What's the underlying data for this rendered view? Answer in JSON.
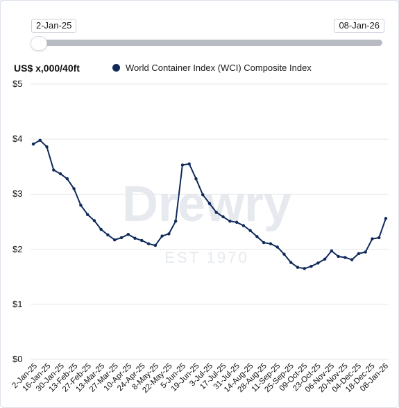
{
  "range_selector": {
    "start_label": "2-Jan-25",
    "end_label": "08-Jan-26"
  },
  "unit_label": "US$ x,000/40ft",
  "legend_label": "World Container Index (WCI) Composite Index",
  "watermark": {
    "brand": "Drewry",
    "tagline": "EST 1970"
  },
  "colors": {
    "line": "#0f2a5a",
    "grid": "#e3e6ea",
    "watermark": "#e6e9ee"
  },
  "chart_data": {
    "type": "line",
    "title": "",
    "ylabel": "US$ x,000/40ft",
    "ylim": [
      0,
      5
    ],
    "y_ticks": [
      {
        "value": 0,
        "label": "$0"
      },
      {
        "value": 1,
        "label": "$1"
      },
      {
        "value": 2,
        "label": "$2"
      },
      {
        "value": 3,
        "label": "$3"
      },
      {
        "value": 4,
        "label": "$4"
      },
      {
        "value": 5,
        "label": "$5"
      }
    ],
    "x_tick_labels": [
      "2-Jan-25",
      "16-Jan-25",
      "30-Jan-25",
      "13-Feb-25",
      "27-Feb-25",
      "13-Mar-25",
      "27-Mar-25",
      "10-Apr-25",
      "24-Apr-25",
      "8-May-25",
      "22-May-25",
      "5-Jun-25",
      "19-Jun-25",
      "3-Jul-25",
      "17-Jul-25",
      "31-Jul-25",
      "14-Aug-25",
      "28-Aug-25",
      "11-Sep-25",
      "25-Sep-25",
      "09-Oct-25",
      "23-Oct-25",
      "06-Nov-25",
      "20-Nov-25",
      "04-Dec-25",
      "18-Dec-25",
      "08-Jan-26"
    ],
    "series": [
      {
        "name": "World Container Index (WCI) Composite Index",
        "values": [
          3.91,
          3.98,
          3.86,
          3.44,
          3.37,
          3.28,
          3.1,
          2.8,
          2.63,
          2.52,
          2.36,
          2.26,
          2.17,
          2.21,
          2.27,
          2.2,
          2.16,
          2.1,
          2.07,
          2.24,
          2.28,
          2.51,
          3.53,
          3.55,
          3.28,
          2.99,
          2.83,
          2.67,
          2.59,
          2.51,
          2.49,
          2.43,
          2.34,
          2.23,
          2.12,
          2.1,
          2.04,
          1.91,
          1.76,
          1.67,
          1.65,
          1.69,
          1.75,
          1.82,
          1.97,
          1.87,
          1.85,
          1.81,
          1.92,
          1.95,
          2.19,
          2.21,
          2.56
        ]
      }
    ]
  }
}
